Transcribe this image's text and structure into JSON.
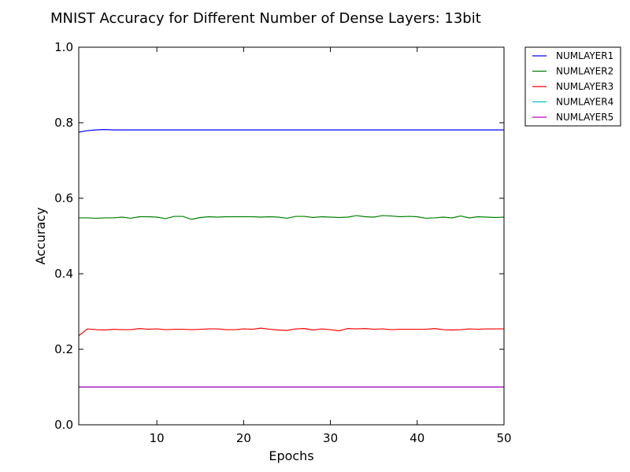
{
  "chart_data": {
    "type": "line",
    "title": "MNIST Accuracy for Different Number of Dense Layers: 13bit",
    "xlabel": "Epochs",
    "ylabel": "Accuracy",
    "xlim": [
      1,
      50
    ],
    "ylim": [
      0.0,
      1.0
    ],
    "xticks": [
      10,
      20,
      30,
      40,
      50
    ],
    "yticks": [
      0.0,
      0.2,
      0.4,
      0.6,
      0.8,
      1.0
    ],
    "xtick_labels": [
      "10",
      "20",
      "30",
      "40",
      "50"
    ],
    "ytick_labels": [
      "0.0",
      "0.2",
      "0.4",
      "0.6",
      "0.8",
      "1.0"
    ],
    "grid": false,
    "legend_position": "outside-top-right",
    "x": [
      1,
      2,
      3,
      4,
      5,
      6,
      7,
      8,
      9,
      10,
      11,
      12,
      13,
      14,
      15,
      16,
      17,
      18,
      19,
      20,
      21,
      22,
      23,
      24,
      25,
      26,
      27,
      28,
      29,
      30,
      31,
      32,
      33,
      34,
      35,
      36,
      37,
      38,
      39,
      40,
      41,
      42,
      43,
      44,
      45,
      46,
      47,
      48,
      49,
      50
    ],
    "series": [
      {
        "name": "NUMLAYER1",
        "color": "#0000ff",
        "values": [
          0.775,
          0.779,
          0.781,
          0.782,
          0.781,
          0.781,
          0.781,
          0.781,
          0.781,
          0.781,
          0.781,
          0.781,
          0.781,
          0.781,
          0.781,
          0.781,
          0.781,
          0.781,
          0.781,
          0.781,
          0.781,
          0.781,
          0.781,
          0.781,
          0.781,
          0.781,
          0.781,
          0.781,
          0.781,
          0.781,
          0.781,
          0.781,
          0.781,
          0.781,
          0.781,
          0.781,
          0.781,
          0.781,
          0.781,
          0.781,
          0.781,
          0.781,
          0.781,
          0.781,
          0.781,
          0.781,
          0.781,
          0.781,
          0.781,
          0.781
        ]
      },
      {
        "name": "NUMLAYER2",
        "color": "#008000",
        "values": [
          0.548,
          0.548,
          0.547,
          0.548,
          0.548,
          0.55,
          0.547,
          0.551,
          0.551,
          0.55,
          0.546,
          0.552,
          0.552,
          0.544,
          0.549,
          0.551,
          0.55,
          0.551,
          0.551,
          0.551,
          0.551,
          0.55,
          0.551,
          0.55,
          0.547,
          0.552,
          0.552,
          0.549,
          0.551,
          0.55,
          0.549,
          0.55,
          0.554,
          0.551,
          0.55,
          0.554,
          0.553,
          0.551,
          0.552,
          0.551,
          0.547,
          0.548,
          0.55,
          0.548,
          0.553,
          0.548,
          0.551,
          0.55,
          0.549,
          0.55
        ]
      },
      {
        "name": "NUMLAYER3",
        "color": "#ff0000",
        "values": [
          0.236,
          0.254,
          0.252,
          0.251,
          0.253,
          0.252,
          0.252,
          0.255,
          0.253,
          0.254,
          0.252,
          0.253,
          0.253,
          0.252,
          0.253,
          0.254,
          0.254,
          0.252,
          0.252,
          0.254,
          0.253,
          0.256,
          0.253,
          0.251,
          0.25,
          0.254,
          0.255,
          0.251,
          0.254,
          0.252,
          0.249,
          0.255,
          0.254,
          0.255,
          0.253,
          0.254,
          0.252,
          0.253,
          0.253,
          0.253,
          0.253,
          0.255,
          0.252,
          0.251,
          0.252,
          0.254,
          0.253,
          0.254,
          0.254,
          0.254
        ]
      },
      {
        "name": "NUMLAYER4",
        "color": "#00bfbf",
        "values": [
          0.1,
          0.1,
          0.1,
          0.1,
          0.1,
          0.1,
          0.1,
          0.1,
          0.1,
          0.1,
          0.1,
          0.1,
          0.1,
          0.1,
          0.1,
          0.1,
          0.1,
          0.1,
          0.1,
          0.1,
          0.1,
          0.1,
          0.1,
          0.1,
          0.1,
          0.1,
          0.1,
          0.1,
          0.1,
          0.1,
          0.1,
          0.1,
          0.1,
          0.1,
          0.1,
          0.1,
          0.1,
          0.1,
          0.1,
          0.1,
          0.1,
          0.1,
          0.1,
          0.1,
          0.1,
          0.1,
          0.1,
          0.1,
          0.1,
          0.1
        ]
      },
      {
        "name": "NUMLAYER5",
        "color": "#bf00bf",
        "values": [
          0.1,
          0.1,
          0.1,
          0.1,
          0.1,
          0.1,
          0.1,
          0.1,
          0.1,
          0.1,
          0.1,
          0.1,
          0.1,
          0.1,
          0.1,
          0.1,
          0.1,
          0.1,
          0.1,
          0.1,
          0.1,
          0.1,
          0.1,
          0.1,
          0.1,
          0.1,
          0.1,
          0.1,
          0.1,
          0.1,
          0.1,
          0.1,
          0.1,
          0.1,
          0.1,
          0.1,
          0.1,
          0.1,
          0.1,
          0.1,
          0.1,
          0.1,
          0.1,
          0.1,
          0.1,
          0.1,
          0.1,
          0.1,
          0.1,
          0.1
        ]
      }
    ]
  }
}
